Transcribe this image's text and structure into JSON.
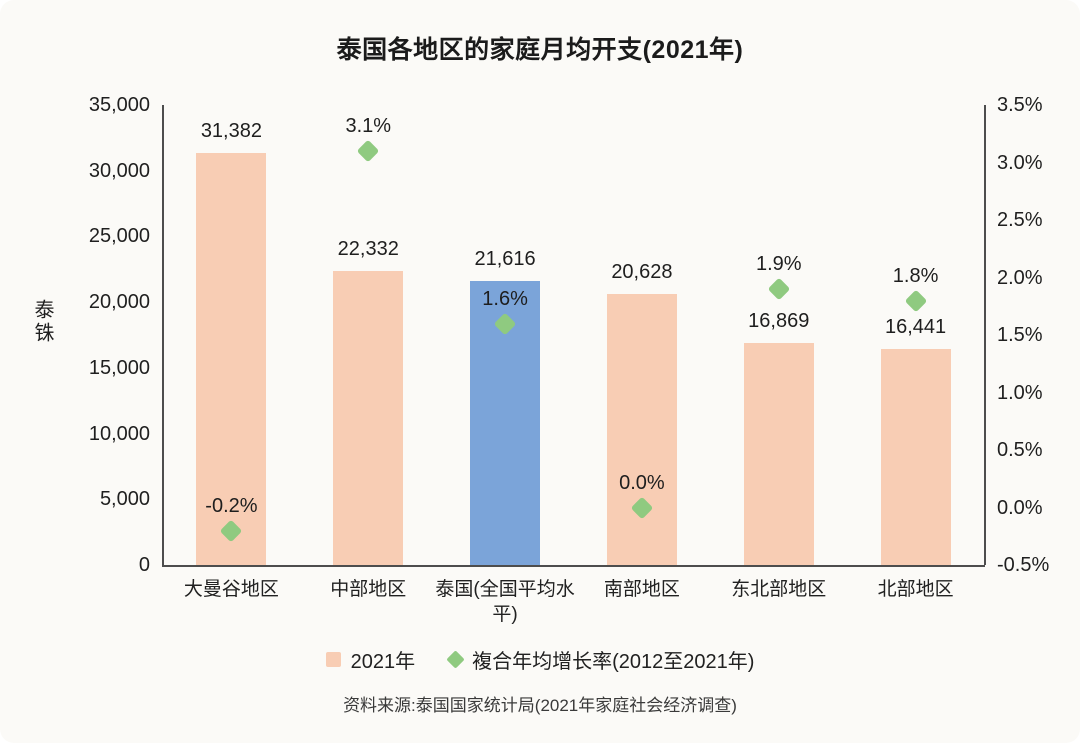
{
  "chart_data": {
    "type": "bar",
    "title": "泰国各地区的家庭月均开支(2021年)",
    "categories": [
      "大曼谷地区",
      "中部地区",
      "泰国(全国平均水平)",
      "南部地区",
      "东北部地区",
      "北部地区"
    ],
    "series": [
      {
        "name": "2021年",
        "kind": "bar",
        "axis": "left",
        "values": [
          31382,
          22332,
          21616,
          20628,
          16869,
          16441
        ],
        "value_labels": [
          "31,382",
          "22,332",
          "21,616",
          "20,628",
          "16,869",
          "16,441"
        ],
        "color": "#f8cdb4",
        "highlight_index": 2,
        "highlight_color": "#7ba4d9"
      },
      {
        "name": "複合年均增长率(2012至2021年)",
        "kind": "scatter",
        "marker": "diamond",
        "axis": "right",
        "values": [
          -0.2,
          3.1,
          1.6,
          0.0,
          1.9,
          1.8
        ],
        "value_labels": [
          "-0.2%",
          "3.1%",
          "1.6%",
          "0.0%",
          "1.9%",
          "1.8%"
        ],
        "color": "#8fca80"
      }
    ],
    "left_axis": {
      "label": "泰铢",
      "min": 0,
      "max": 35000,
      "tick_step": 5000,
      "tick_labels": [
        "35,000",
        "30,000",
        "25,000",
        "20,000",
        "15,000",
        "10,000",
        "5,000",
        "0"
      ]
    },
    "right_axis": {
      "min": -0.5,
      "max": 3.5,
      "tick_step": 0.5,
      "tick_labels": [
        "3.5%",
        "3.0%",
        "2.5%",
        "2.0%",
        "1.5%",
        "1.0%",
        "0.5%",
        "0.0%",
        "-0.5%"
      ]
    },
    "grid": false,
    "legend_position": "bottom",
    "legend": [
      {
        "label": "2021年",
        "marker": "square",
        "color": "#f8cdb4"
      },
      {
        "label": "複合年均增长率(2012至2021年)",
        "marker": "diamond",
        "color": "#8fca80"
      }
    ],
    "source": "资料来源:泰国国家统计局(2021年家庭社会经济调查)"
  },
  "colors": {
    "background": "#fbfaf7",
    "axis_line": "#4d4d4d",
    "text": "#1f1f1f",
    "bar_pink": "#f8cdb4",
    "bar_blue": "#7ba4d9",
    "marker_green": "#8fca80"
  }
}
